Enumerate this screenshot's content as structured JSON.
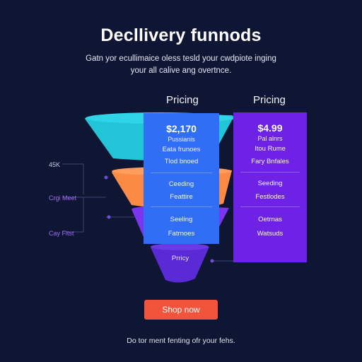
{
  "header": {
    "title": "Decllivery funnods",
    "subtitle_line1": "Gatn yor ecullimaice oless tesld your cwdpiote inging",
    "subtitle_line2": "your all calive ang overtnce."
  },
  "columns": {
    "left_heading": "Pricing",
    "right_heading": "Pricing"
  },
  "cards": {
    "left": {
      "price": "$2,170",
      "sub_label": "Pussianis",
      "features": [
        "Eata frunoes",
        "Tlod bnoed",
        "Ceeding",
        "Feattire",
        "Seeling",
        "Fatrnoes"
      ]
    },
    "right": {
      "price": "$4.99",
      "sub_label": "Pal alnrs",
      "features": [
        "Itou Rume",
        "Fary Bnfales",
        "Seeding",
        "Festlodes",
        "Oetrnas",
        "Watsuds"
      ]
    }
  },
  "funnel": {
    "colors": [
      "#22c4d8",
      "#fb8a45",
      "#7b35ee",
      "#5a2ad6"
    ],
    "bottom_label": "Prricy"
  },
  "side_labels": {
    "top": "45K",
    "middle": "Crgi Meet",
    "lower": "Cay Fltst"
  },
  "cta": {
    "label": "Shop now",
    "color": "#f2533b"
  },
  "footer": {
    "text": "Do tor ment fenting ofr your fehs."
  }
}
